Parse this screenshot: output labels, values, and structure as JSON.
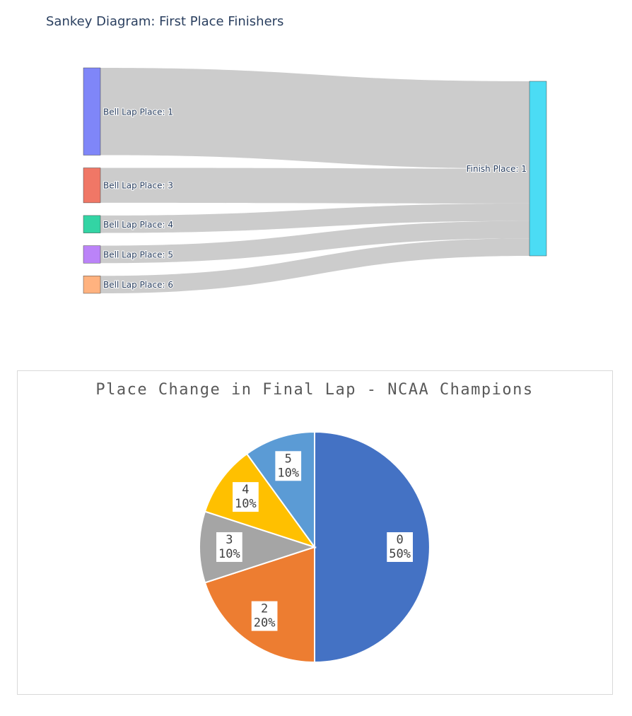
{
  "chart_data": [
    {
      "type": "sankey",
      "title": "Sankey Diagram: First Place Finishers",
      "nodes": [
        {
          "label": "Bell Lap Place: 1",
          "color": "#7f86f8"
        },
        {
          "label": "Bell Lap Place: 3",
          "color": "#f07766"
        },
        {
          "label": "Bell Lap Place: 4",
          "color": "#33d4a4"
        },
        {
          "label": "Bell Lap Place: 5",
          "color": "#bb83f8"
        },
        {
          "label": "Bell Lap Place: 6",
          "color": "#ffb27f"
        },
        {
          "label": "Finish Place: 1",
          "color": "#4bdcf4"
        }
      ],
      "links": {
        "source": [
          0,
          1,
          2,
          3,
          4
        ],
        "target": [
          5,
          5,
          5,
          5,
          5
        ],
        "values": [
          5,
          2,
          1,
          1,
          1
        ],
        "color": "#cccccc"
      }
    },
    {
      "type": "pie",
      "title": "Place Change in Final Lap - NCAA Champions",
      "categories": [
        "0",
        "2",
        "3",
        "4",
        "5"
      ],
      "values": [
        50,
        20,
        10,
        10,
        10
      ],
      "value_labels": [
        "50%",
        "20%",
        "10%",
        "10%",
        "10%"
      ],
      "colors": [
        "#4472c4",
        "#ed7d31",
        "#a5a5a5",
        "#ffc000",
        "#5b9bd5"
      ]
    }
  ]
}
